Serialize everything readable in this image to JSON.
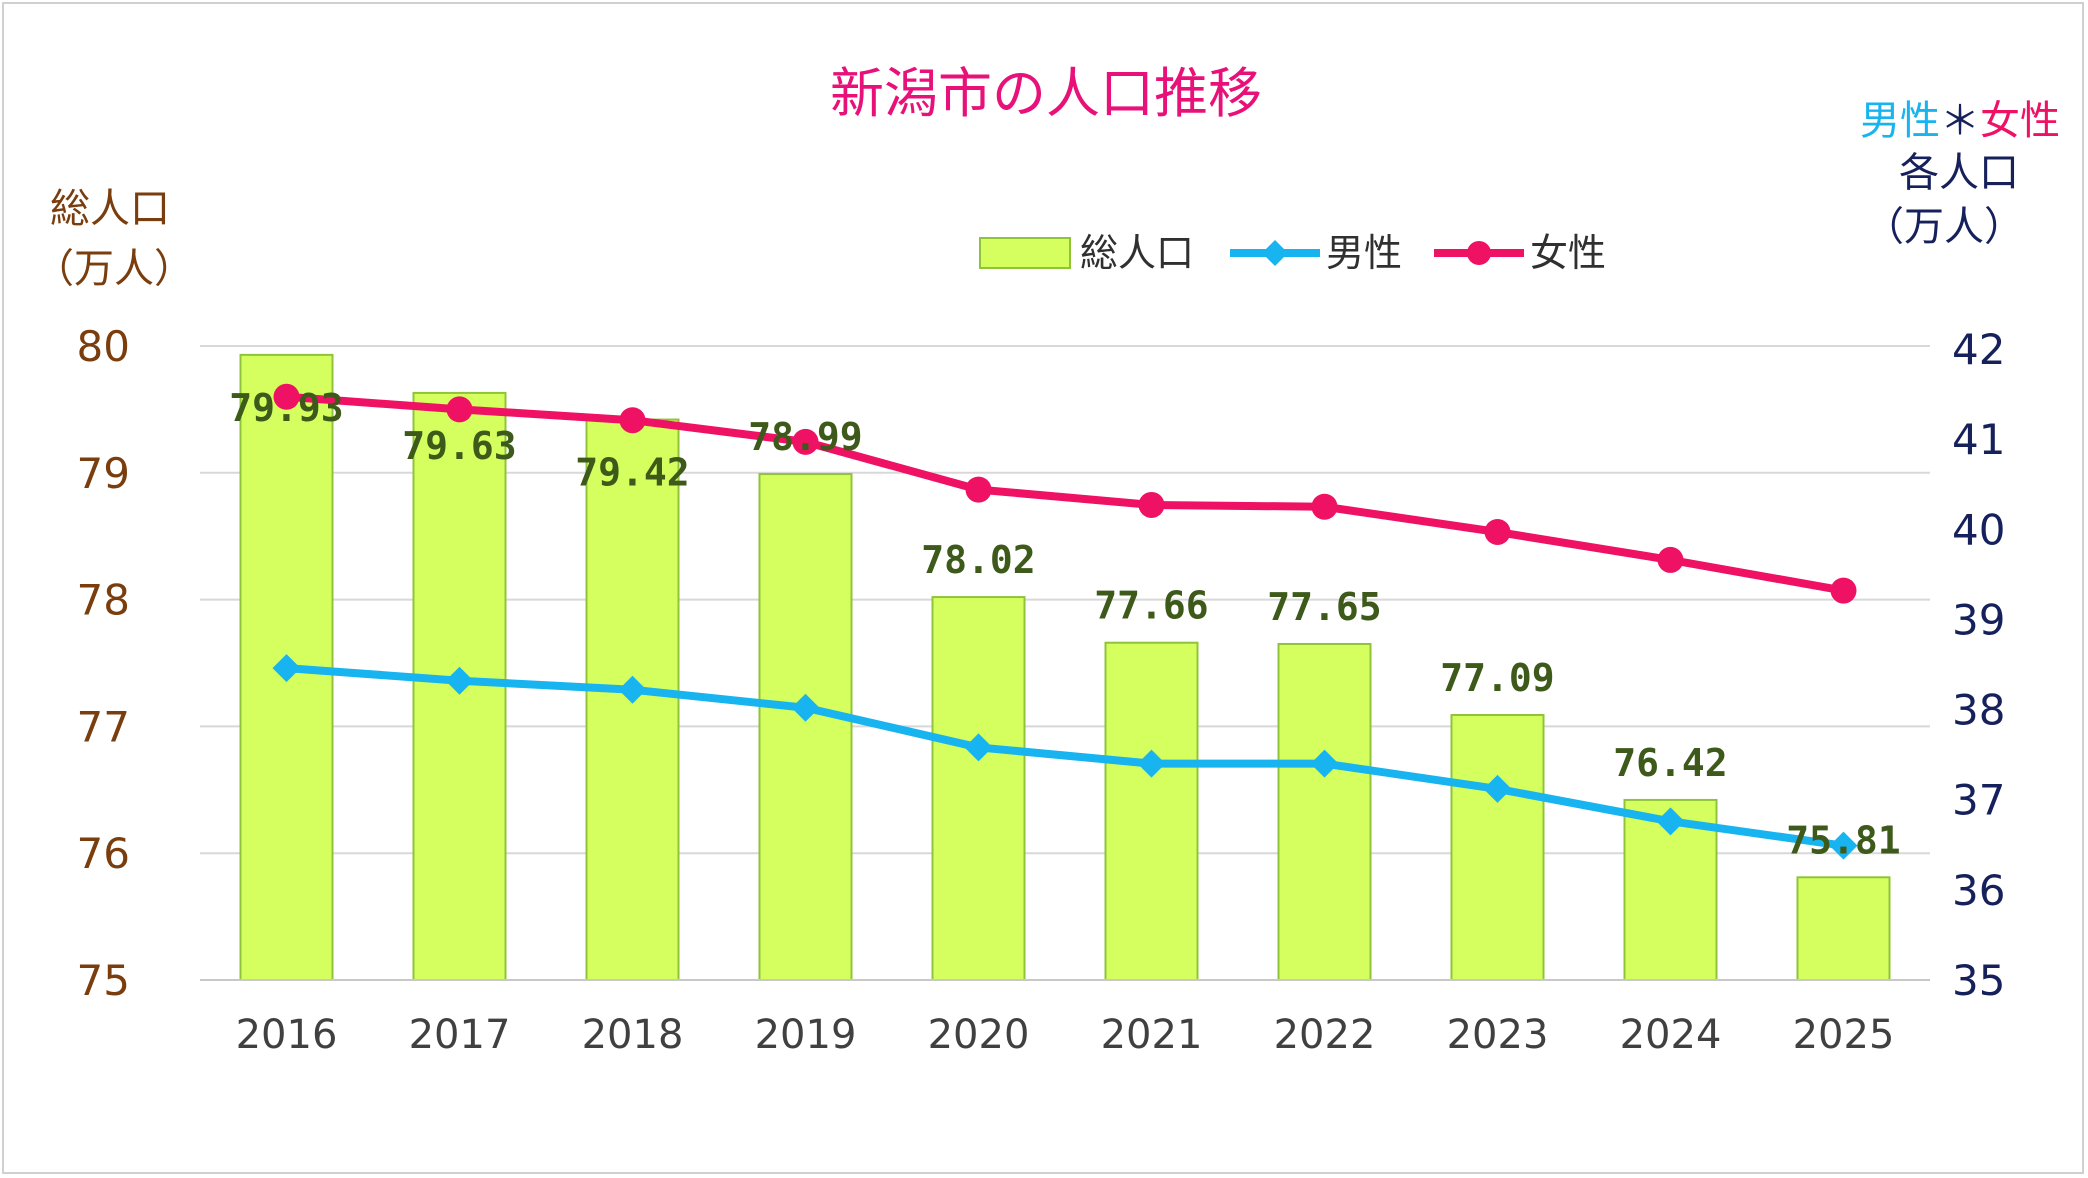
{
  "chart_data": {
    "type": "bar",
    "title": "新潟市の人口推移",
    "left_axis_label": [
      "総人口",
      "（万人）"
    ],
    "right_axis_label": {
      "line1_male": "男性",
      "line1_sep": "＊",
      "line1_female": "女性",
      "line2": "各人口",
      "line3": "（万人）"
    },
    "categories": [
      "2016",
      "2017",
      "2018",
      "2019",
      "2020",
      "2021",
      "2022",
      "2023",
      "2024",
      "2025"
    ],
    "y_left": {
      "min": 75,
      "max": 80,
      "ticks": [
        "75",
        "76",
        "77",
        "78",
        "79",
        "80"
      ]
    },
    "y_right": {
      "min": 35,
      "max": 42,
      "ticks": [
        "35",
        "36",
        "37",
        "38",
        "39",
        "40",
        "41",
        "42"
      ]
    },
    "grid": true,
    "legend_position": "top",
    "series": [
      {
        "name": "総人口",
        "type": "bar",
        "axis": "left",
        "color": "#d4ff5e",
        "border": "#8fc43a",
        "values": [
          79.93,
          79.63,
          79.42,
          78.99,
          78.02,
          77.66,
          77.65,
          77.09,
          76.42,
          75.81
        ],
        "labels": [
          "79.93",
          "79.63",
          "79.42",
          "78.99",
          "78.02",
          "77.66",
          "77.65",
          "77.09",
          "76.42",
          "75.81"
        ]
      },
      {
        "name": "男性",
        "type": "line",
        "axis": "right",
        "color": "#18b4f0",
        "marker": "diamond",
        "values": [
          38.46,
          38.32,
          38.22,
          38.02,
          37.58,
          37.4,
          37.4,
          37.12,
          36.76,
          36.49
        ]
      },
      {
        "name": "女性",
        "type": "line",
        "axis": "right",
        "color": "#ee1164",
        "marker": "circle",
        "values": [
          41.47,
          41.33,
          41.21,
          40.97,
          40.44,
          40.27,
          40.25,
          39.97,
          39.66,
          39.32
        ]
      }
    ]
  },
  "colors": {
    "title": "#e8117a",
    "left_axis": "#7a3d0e",
    "right_axis": "#16215c",
    "male": "#18b4f0",
    "female": "#ee1164",
    "grid": "#d8d8d8"
  }
}
